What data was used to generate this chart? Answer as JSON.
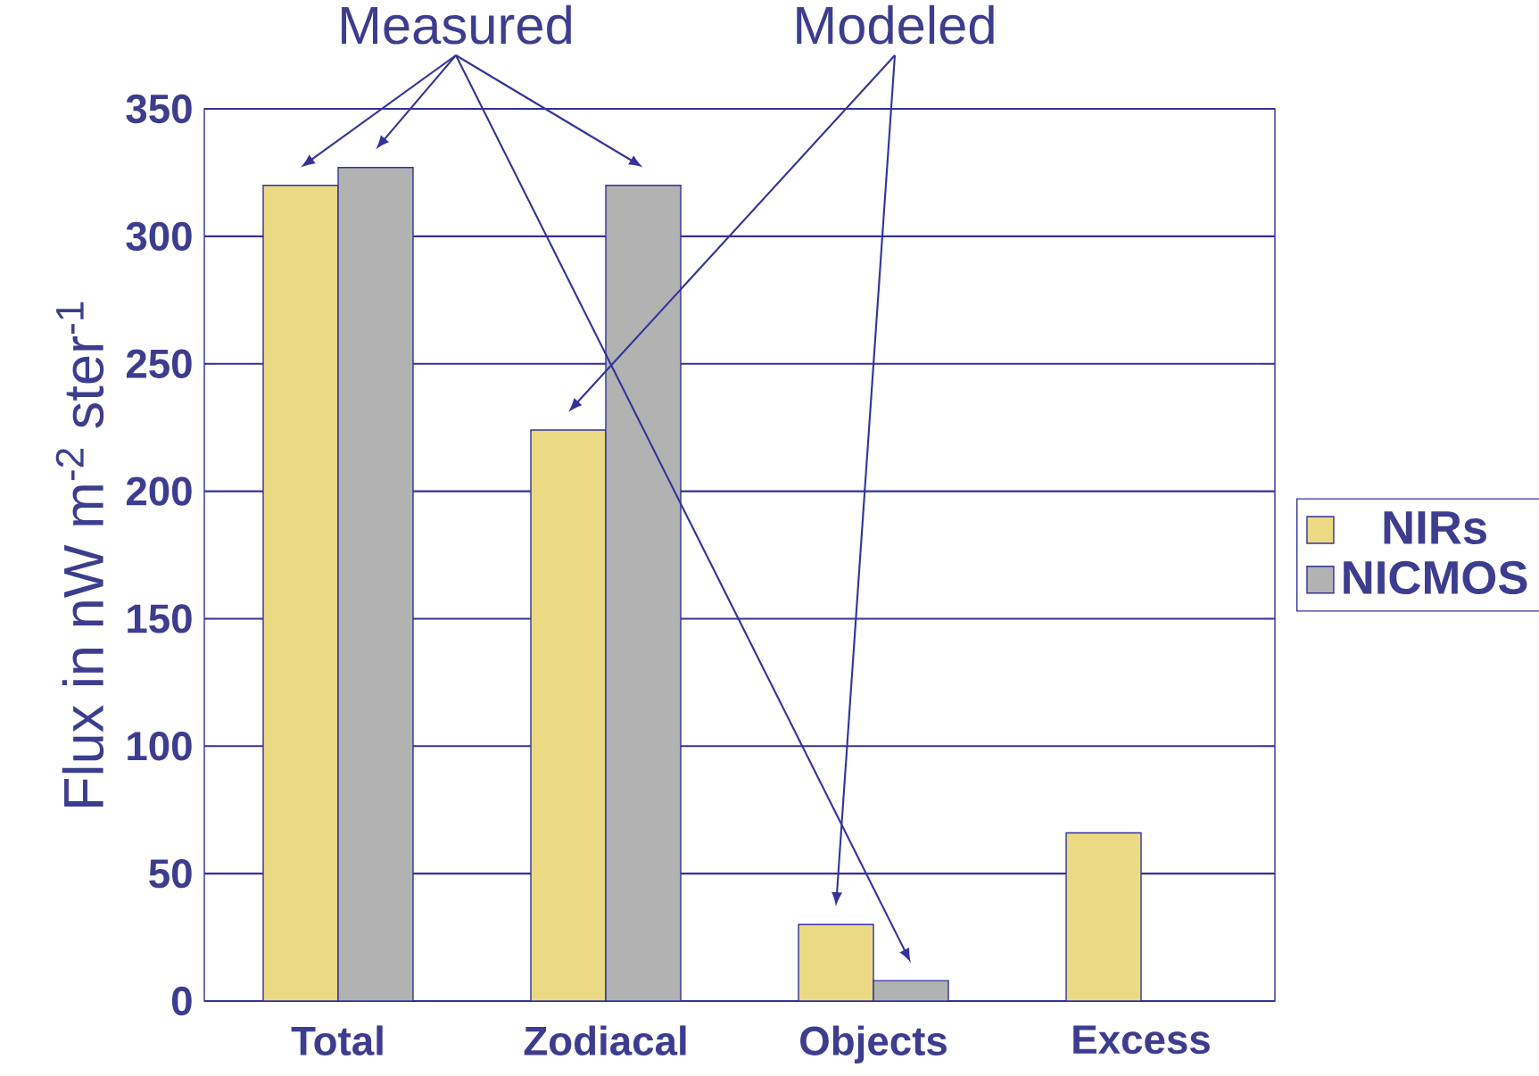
{
  "chart_data": {
    "type": "bar",
    "ylabel": "Flux in nW m$^{-2}$ ster$^{-1}$",
    "categories": [
      "Total",
      "Zodiacal",
      "Objects",
      "Excess"
    ],
    "series": [
      {
        "name": "NIRs",
        "color": "#ecd984",
        "values": [
          320,
          224,
          30,
          66
        ]
      },
      {
        "name": "NICMOS",
        "color": "#b2b2b2",
        "values": [
          327,
          320,
          8,
          null
        ]
      }
    ],
    "ylim": [
      0,
      350
    ],
    "yticks": [
      0,
      50,
      100,
      150,
      200,
      250,
      300,
      350
    ],
    "grid": "y",
    "legend": "right",
    "annotations": [
      "Measured",
      "Modeled"
    ]
  }
}
